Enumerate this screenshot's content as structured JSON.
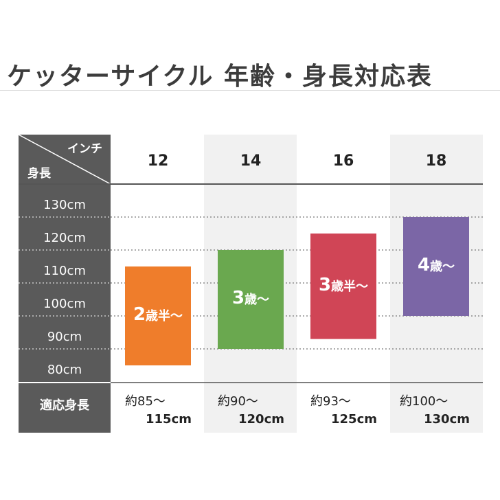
{
  "title": "ケッターサイクル 年齢・身長対応表",
  "header": {
    "inch_label": "インチ",
    "height_label": "身長"
  },
  "footer": {
    "row_label": "適応身長"
  },
  "colors": {
    "sidebar": "#5a5a5a",
    "shade": "#f1f1f1",
    "bar12": "#ef7d2b",
    "bar14": "#6aa84f",
    "bar16": "#d04556",
    "bar18": "#7b66a6"
  },
  "chart_data": {
    "type": "bar",
    "categories": [
      "12",
      "14",
      "16",
      "18"
    ],
    "y_ticks": [
      "130cm",
      "120cm",
      "110cm",
      "100cm",
      "90cm",
      "80cm"
    ],
    "ylim": [
      80,
      130
    ],
    "series": [
      {
        "category": "12",
        "age_label_main": "2",
        "age_label_rest": "歳半～",
        "min": 85,
        "max": 115,
        "range_top": "約85～",
        "range_bottom": "115cm"
      },
      {
        "category": "14",
        "age_label_main": "3",
        "age_label_rest": "歳～",
        "min": 90,
        "max": 120,
        "range_top": "約90～",
        "range_bottom": "120cm"
      },
      {
        "category": "16",
        "age_label_main": "3",
        "age_label_rest": "歳半～",
        "min": 93,
        "max": 125,
        "range_top": "約93～",
        "range_bottom": "125cm"
      },
      {
        "category": "18",
        "age_label_main": "4",
        "age_label_rest": "歳～",
        "min": 100,
        "max": 130,
        "range_top": "約100～",
        "range_bottom": "130cm"
      }
    ]
  }
}
